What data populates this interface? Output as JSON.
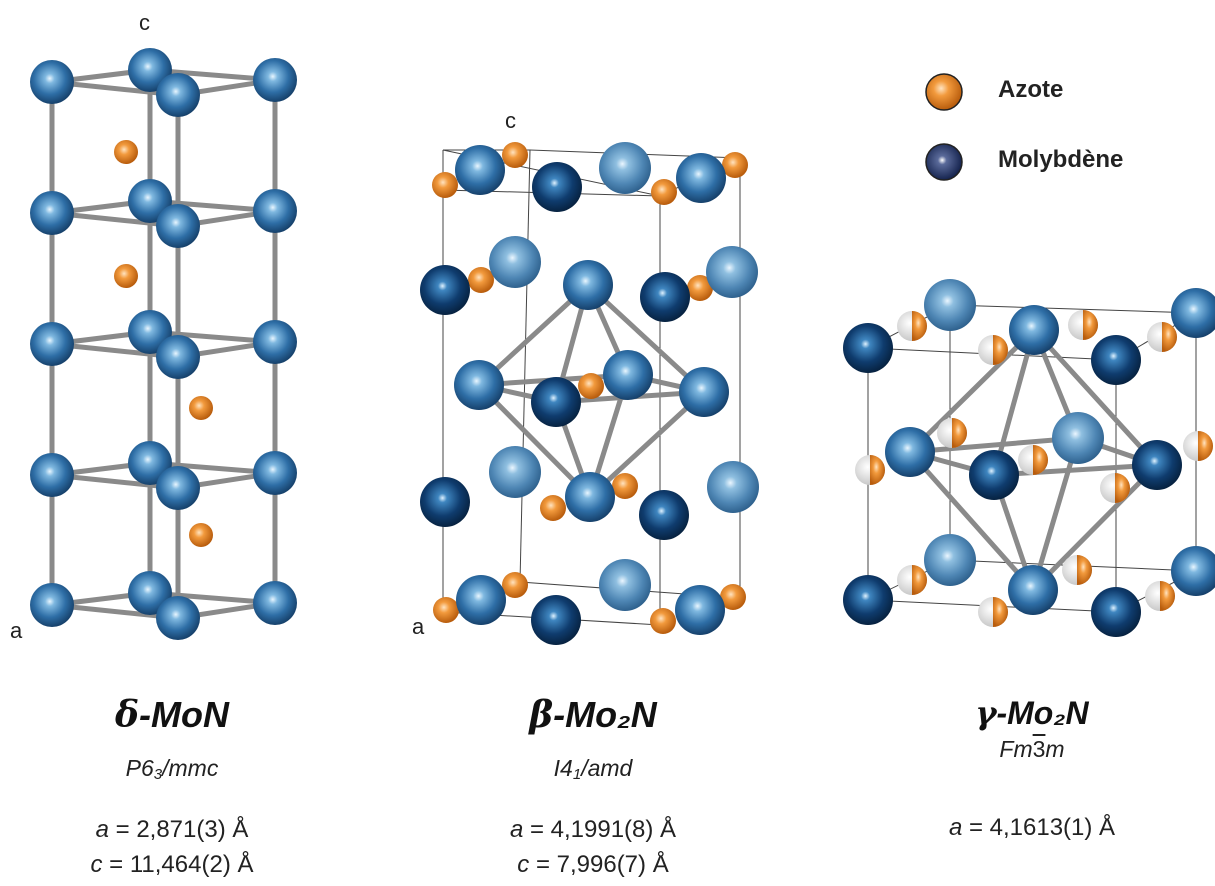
{
  "legend": {
    "nitrogen": {
      "label": "Azote",
      "color": "#e8862c"
    },
    "molybdenum": {
      "label": "Molybdène",
      "color": "#1c4f86"
    }
  },
  "structures": [
    {
      "greek": "δ",
      "formula": "-MoN",
      "space_group_parts": [
        "P6",
        "3",
        "/mmc"
      ],
      "params": [
        {
          "sym": "a",
          "value": " = 2,871(3) Å"
        },
        {
          "sym": "c",
          "value": " = 11,464(2) Å"
        }
      ],
      "axis_c": "c",
      "axis_a": "a"
    },
    {
      "greek": "β",
      "formula": "-Mo₂N",
      "space_group_parts": [
        "I4",
        "1",
        "/amd"
      ],
      "params": [
        {
          "sym": "a",
          "value": " = 4,1991(8) Å"
        },
        {
          "sym": "c",
          "value": " = 7,996(7) Å"
        }
      ],
      "axis_c": "c",
      "axis_a": "a"
    },
    {
      "greek": "γ",
      "formula": "-Mo₂N",
      "space_group_parts": [
        "Fm",
        "3",
        "m"
      ],
      "params": [
        {
          "sym": "a",
          "value": " = 4,1613(1) Å"
        }
      ]
    }
  ]
}
